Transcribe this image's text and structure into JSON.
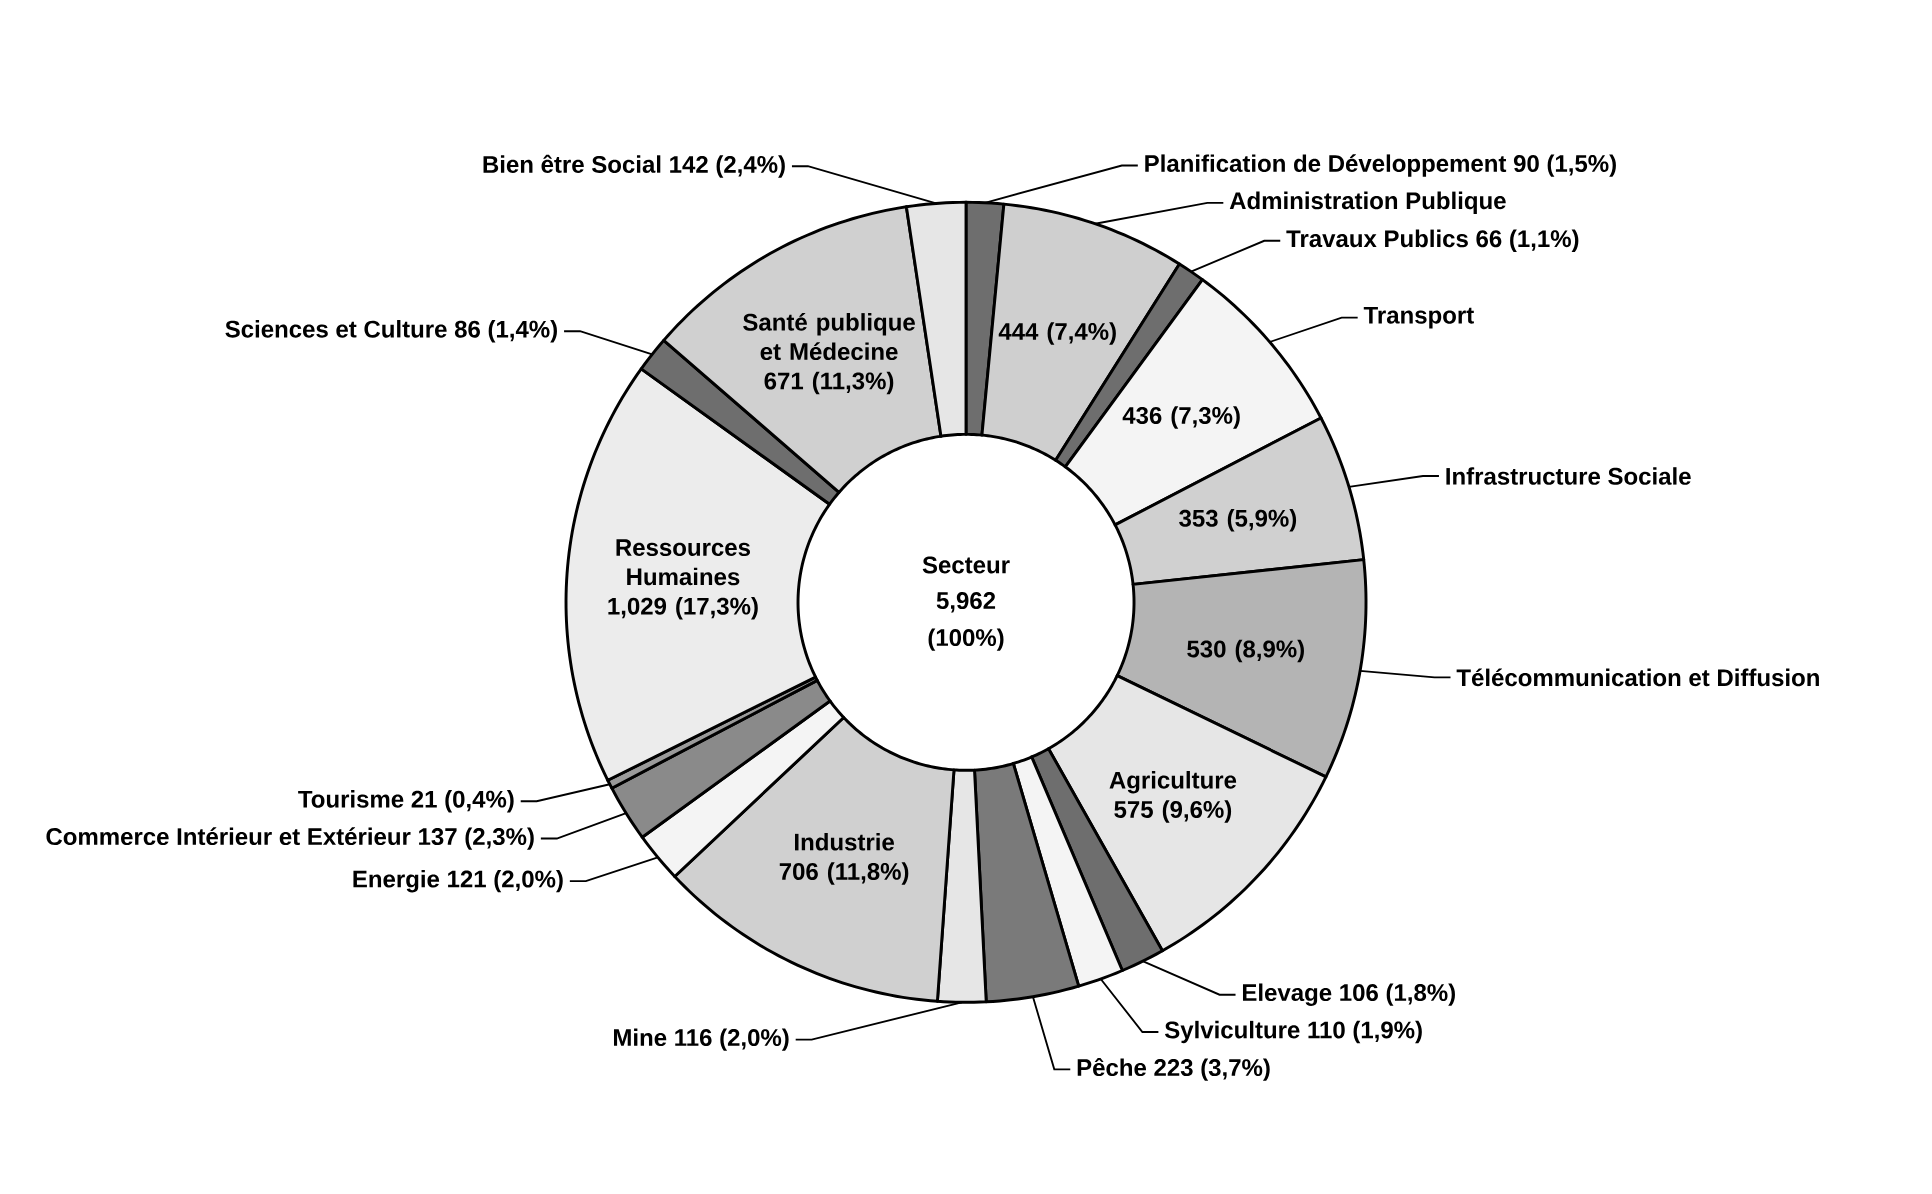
{
  "chart_data": {
    "type": "donut",
    "categories": [
      "Planification de Développement",
      "Administration Publique",
      "Travaux Publics",
      "Transport",
      "Infrastructure Sociale",
      "Télécommunication et Diffusion",
      "Agriculture",
      "Elevage",
      "Sylviculture",
      "Pêche",
      "Mine",
      "Industrie",
      "Energie",
      "Commerce Intérieur et Extérieur",
      "Tourisme",
      "Ressources Humaines",
      "Sciences et Culture",
      "Santé publique et Médecine",
      "Bien être Social"
    ],
    "values": [
      90,
      444,
      66,
      436,
      353,
      530,
      575,
      106,
      110,
      223,
      116,
      706,
      121,
      137,
      21,
      1029,
      86,
      671,
      142
    ],
    "value_labels": [
      "90 (1,5%)",
      "444 (7,4%)",
      "66 (1,1%)",
      "436 (7,3%)",
      "353 (5,9%)",
      "530 (8,9%)",
      "575 (9,6%)",
      "106 (1,8%)",
      "110 (1,9%)",
      "223 (3,7%)",
      "116 (2,0%)",
      "706 (11,8%)",
      "121 (2,0%)",
      "137 (2,3%)",
      "21 (0,4%)",
      "1,029 (17,3%)",
      "86 (1,4%)",
      "671 (11,3%)",
      "142 (2,4%)"
    ],
    "colors": [
      "#6e6e6e",
      "#cfcfcf",
      "#6e6e6e",
      "#f4f4f4",
      "#d0d0d0",
      "#b4b4b4",
      "#e6e6e6",
      "#6e6e6e",
      "#f4f4f4",
      "#7a7a7a",
      "#e6e6e6",
      "#d0d0d0",
      "#f4f4f4",
      "#8a8a8a",
      "#9a9a9a",
      "#ececec",
      "#6e6e6e",
      "#d0d0d0",
      "#e6e6e6"
    ],
    "annotations": [
      "Secteur",
      "5,962",
      "(100%)"
    ]
  }
}
